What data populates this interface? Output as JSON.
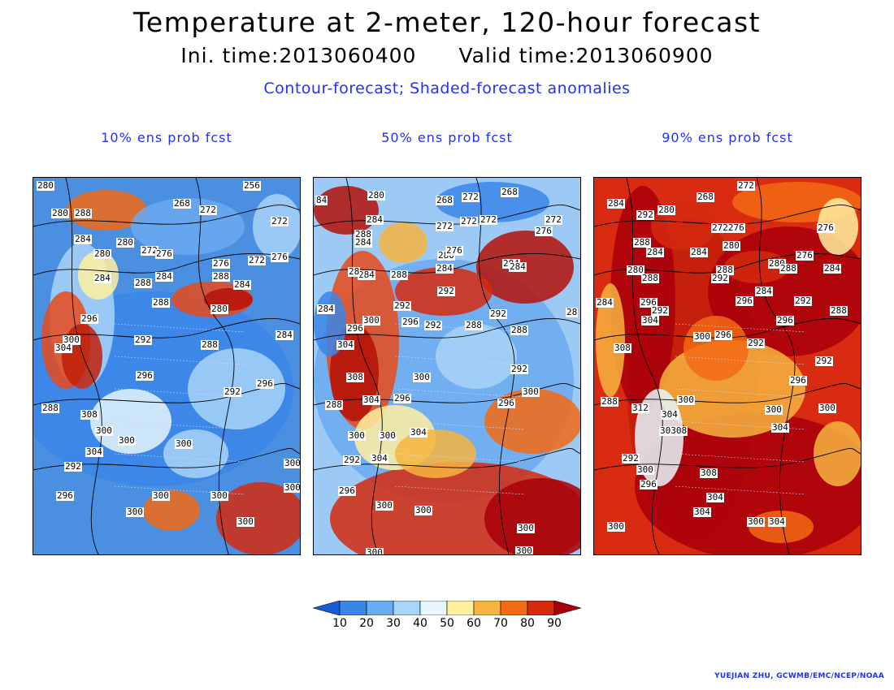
{
  "title": "Temperature at 2-meter, 120-hour forecast",
  "subtitle": {
    "ini": "Ini. time:2013060400",
    "valid": "Valid time:2013060900"
  },
  "description": "Contour-forecast; Shaded-forecast anomalies",
  "panels": [
    {
      "title": "10% ens prob fcst",
      "base_color": "#4a8fe0",
      "labels": [
        {
          "t": "280",
          "x": 4,
          "y": 4
        },
        {
          "t": "288",
          "x": 50,
          "y": 38
        },
        {
          "t": "280",
          "x": 22,
          "y": 38
        },
        {
          "t": "256",
          "x": 258,
          "y": 4
        },
        {
          "t": "268",
          "x": 172,
          "y": 26
        },
        {
          "t": "272",
          "x": 204,
          "y": 34
        },
        {
          "t": "272",
          "x": 292,
          "y": 48
        },
        {
          "t": "284",
          "x": 50,
          "y": 70
        },
        {
          "t": "280",
          "x": 102,
          "y": 74
        },
        {
          "t": "280",
          "x": 74,
          "y": 88
        },
        {
          "t": "272",
          "x": 132,
          "y": 84
        },
        {
          "t": "276",
          "x": 150,
          "y": 88
        },
        {
          "t": "276",
          "x": 292,
          "y": 92
        },
        {
          "t": "272",
          "x": 264,
          "y": 96
        },
        {
          "t": "276",
          "x": 220,
          "y": 100
        },
        {
          "t": "284",
          "x": 74,
          "y": 118
        },
        {
          "t": "288",
          "x": 124,
          "y": 124
        },
        {
          "t": "284",
          "x": 150,
          "y": 116
        },
        {
          "t": "288",
          "x": 220,
          "y": 116
        },
        {
          "t": "284",
          "x": 246,
          "y": 126
        },
        {
          "t": "288",
          "x": 146,
          "y": 148
        },
        {
          "t": "280",
          "x": 218,
          "y": 156
        },
        {
          "t": "284",
          "x": 298,
          "y": 188
        },
        {
          "t": "296",
          "x": 58,
          "y": 168
        },
        {
          "t": "300",
          "x": 36,
          "y": 194
        },
        {
          "t": "304",
          "x": 26,
          "y": 204
        },
        {
          "t": "292",
          "x": 124,
          "y": 194
        },
        {
          "t": "288",
          "x": 206,
          "y": 200
        },
        {
          "t": "296",
          "x": 126,
          "y": 238
        },
        {
          "t": "296",
          "x": 274,
          "y": 248
        },
        {
          "t": "292",
          "x": 234,
          "y": 258
        },
        {
          "t": "288",
          "x": 10,
          "y": 278
        },
        {
          "t": "308",
          "x": 58,
          "y": 286
        },
        {
          "t": "300",
          "x": 76,
          "y": 306
        },
        {
          "t": "300",
          "x": 104,
          "y": 318
        },
        {
          "t": "304",
          "x": 64,
          "y": 332
        },
        {
          "t": "300",
          "x": 174,
          "y": 322
        },
        {
          "t": "292",
          "x": 38,
          "y": 350
        },
        {
          "t": "296",
          "x": 28,
          "y": 386
        },
        {
          "t": "300",
          "x": 146,
          "y": 386
        },
        {
          "t": "300",
          "x": 218,
          "y": 386
        },
        {
          "t": "300",
          "x": 114,
          "y": 406
        },
        {
          "t": "300",
          "x": 250,
          "y": 418
        },
        {
          "t": "300",
          "x": 308,
          "y": 376
        },
        {
          "t": "300",
          "x": 308,
          "y": 346
        }
      ]
    },
    {
      "title": "50% ens prob fcst",
      "base_color": "#9ccaf5",
      "labels": [
        {
          "t": "84",
          "x": 2,
          "y": 22
        },
        {
          "t": "280",
          "x": 66,
          "y": 16
        },
        {
          "t": "268",
          "x": 150,
          "y": 22
        },
        {
          "t": "272",
          "x": 182,
          "y": 18
        },
        {
          "t": "268",
          "x": 230,
          "y": 12
        },
        {
          "t": "272",
          "x": 284,
          "y": 46
        },
        {
          "t": "276",
          "x": 272,
          "y": 60
        },
        {
          "t": "272",
          "x": 150,
          "y": 54
        },
        {
          "t": "272",
          "x": 180,
          "y": 48
        },
        {
          "t": "272",
          "x": 204,
          "y": 46
        },
        {
          "t": "284",
          "x": 64,
          "y": 46
        },
        {
          "t": "288",
          "x": 50,
          "y": 64
        },
        {
          "t": "284",
          "x": 50,
          "y": 74
        },
        {
          "t": "280",
          "x": 152,
          "y": 90
        },
        {
          "t": "276",
          "x": 162,
          "y": 84
        },
        {
          "t": "284",
          "x": 150,
          "y": 106
        },
        {
          "t": "288",
          "x": 94,
          "y": 114
        },
        {
          "t": "284",
          "x": 54,
          "y": 114
        },
        {
          "t": "28",
          "x": 42,
          "y": 110
        },
        {
          "t": "284",
          "x": 232,
          "y": 100
        },
        {
          "t": "284",
          "x": 240,
          "y": 104
        },
        {
          "t": "292",
          "x": 152,
          "y": 134
        },
        {
          "t": "292",
          "x": 98,
          "y": 152
        },
        {
          "t": "284",
          "x": 4,
          "y": 156
        },
        {
          "t": "300",
          "x": 60,
          "y": 170
        },
        {
          "t": "296",
          "x": 40,
          "y": 180
        },
        {
          "t": "296",
          "x": 108,
          "y": 172
        },
        {
          "t": "292",
          "x": 136,
          "y": 176
        },
        {
          "t": "288",
          "x": 186,
          "y": 176
        },
        {
          "t": "288",
          "x": 242,
          "y": 182
        },
        {
          "t": "292",
          "x": 216,
          "y": 162
        },
        {
          "t": "28",
          "x": 310,
          "y": 160
        },
        {
          "t": "304",
          "x": 28,
          "y": 200
        },
        {
          "t": "308",
          "x": 40,
          "y": 240
        },
        {
          "t": "300",
          "x": 122,
          "y": 240
        },
        {
          "t": "292",
          "x": 242,
          "y": 230
        },
        {
          "t": "304",
          "x": 60,
          "y": 268
        },
        {
          "t": "296",
          "x": 98,
          "y": 266
        },
        {
          "t": "300",
          "x": 256,
          "y": 258
        },
        {
          "t": "296",
          "x": 226,
          "y": 272
        },
        {
          "t": "288",
          "x": 14,
          "y": 274
        },
        {
          "t": "304",
          "x": 118,
          "y": 308
        },
        {
          "t": "300",
          "x": 42,
          "y": 312
        },
        {
          "t": "300",
          "x": 80,
          "y": 312
        },
        {
          "t": "304",
          "x": 70,
          "y": 340
        },
        {
          "t": "292",
          "x": 36,
          "y": 342
        },
        {
          "t": "296",
          "x": 30,
          "y": 380
        },
        {
          "t": "300",
          "x": 76,
          "y": 398
        },
        {
          "t": "300",
          "x": 124,
          "y": 404
        },
        {
          "t": "300",
          "x": 250,
          "y": 426
        },
        {
          "t": "300",
          "x": 248,
          "y": 454
        },
        {
          "t": "300",
          "x": 64,
          "y": 456
        }
      ]
    },
    {
      "title": "90% ens prob fcst",
      "base_color": "#d92a12",
      "labels": [
        {
          "t": "272",
          "x": 176,
          "y": 4
        },
        {
          "t": "284",
          "x": 16,
          "y": 26
        },
        {
          "t": "268",
          "x": 126,
          "y": 18
        },
        {
          "t": "292",
          "x": 52,
          "y": 40
        },
        {
          "t": "280",
          "x": 78,
          "y": 34
        },
        {
          "t": "272276",
          "x": 144,
          "y": 56
        },
        {
          "t": "280",
          "x": 158,
          "y": 78
        },
        {
          "t": "276",
          "x": 274,
          "y": 56
        },
        {
          "t": "288",
          "x": 48,
          "y": 74
        },
        {
          "t": "284",
          "x": 64,
          "y": 86
        },
        {
          "t": "284",
          "x": 118,
          "y": 86
        },
        {
          "t": "276",
          "x": 248,
          "y": 90
        },
        {
          "t": "284",
          "x": 282,
          "y": 106
        },
        {
          "t": "288",
          "x": 150,
          "y": 108
        },
        {
          "t": "280",
          "x": 214,
          "y": 100
        },
        {
          "t": "288",
          "x": 228,
          "y": 106
        },
        {
          "t": "280",
          "x": 40,
          "y": 108
        },
        {
          "t": "288",
          "x": 58,
          "y": 118
        },
        {
          "t": "292",
          "x": 144,
          "y": 118
        },
        {
          "t": "284",
          "x": 198,
          "y": 134
        },
        {
          "t": "296",
          "x": 174,
          "y": 146
        },
        {
          "t": "292",
          "x": 246,
          "y": 146
        },
        {
          "t": "288",
          "x": 290,
          "y": 158
        },
        {
          "t": "296",
          "x": 56,
          "y": 148
        },
        {
          "t": "292",
          "x": 70,
          "y": 158
        },
        {
          "t": "304",
          "x": 58,
          "y": 170
        },
        {
          "t": "284",
          "x": 2,
          "y": 148
        },
        {
          "t": "296",
          "x": 224,
          "y": 170
        },
        {
          "t": "300",
          "x": 122,
          "y": 190
        },
        {
          "t": "296",
          "x": 148,
          "y": 188
        },
        {
          "t": "292",
          "x": 188,
          "y": 198
        },
        {
          "t": "308",
          "x": 24,
          "y": 204
        },
        {
          "t": "292",
          "x": 272,
          "y": 220
        },
        {
          "t": "296",
          "x": 240,
          "y": 244
        },
        {
          "t": "288",
          "x": 8,
          "y": 270
        },
        {
          "t": "312",
          "x": 46,
          "y": 278
        },
        {
          "t": "304",
          "x": 82,
          "y": 286
        },
        {
          "t": "300",
          "x": 102,
          "y": 268
        },
        {
          "t": "300",
          "x": 210,
          "y": 280
        },
        {
          "t": "300",
          "x": 276,
          "y": 278
        },
        {
          "t": "304",
          "x": 218,
          "y": 302
        },
        {
          "t": "30308",
          "x": 80,
          "y": 306
        },
        {
          "t": "292",
          "x": 34,
          "y": 340
        },
        {
          "t": "300",
          "x": 52,
          "y": 354
        },
        {
          "t": "308",
          "x": 130,
          "y": 358
        },
        {
          "t": "296",
          "x": 56,
          "y": 372
        },
        {
          "t": "304",
          "x": 138,
          "y": 388
        },
        {
          "t": "304",
          "x": 122,
          "y": 406
        },
        {
          "t": "300",
          "x": 188,
          "y": 418
        },
        {
          "t": "304",
          "x": 214,
          "y": 418
        },
        {
          "t": "300",
          "x": 16,
          "y": 424
        }
      ]
    }
  ],
  "colorbar": {
    "ticks": [
      "10",
      "20",
      "30",
      "40",
      "50",
      "60",
      "70",
      "80",
      "90"
    ],
    "colors": [
      "#1a5cd8",
      "#3a86e8",
      "#6aaaf0",
      "#a8d4f8",
      "#e6f6fc",
      "#fff0a0",
      "#f7b440",
      "#f26a14",
      "#d42a0e",
      "#a8000a"
    ]
  },
  "credit": "YUEJIAN ZHU, GCWMB/EMC/NCEP/NOAA"
}
